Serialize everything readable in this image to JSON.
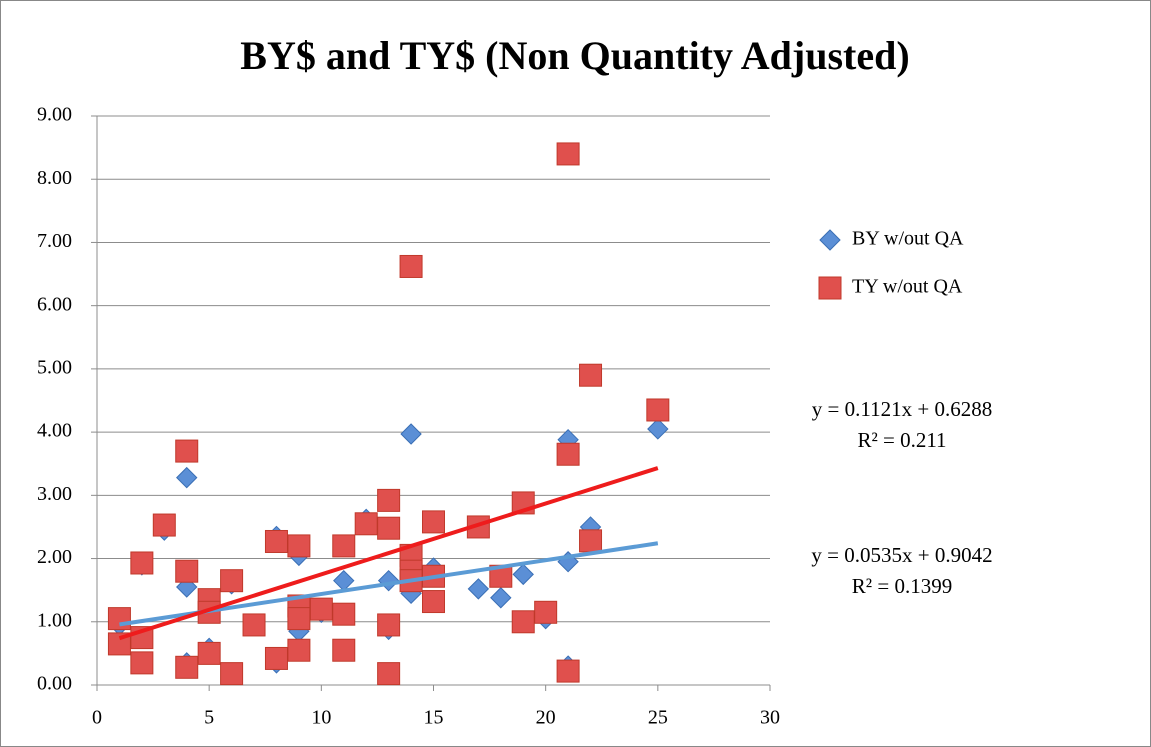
{
  "chart_data": {
    "type": "scatter",
    "title": "BY$ and TY$ (Non Quantity Adjusted)",
    "xlim": [
      0,
      30
    ],
    "xticks": [
      0,
      5,
      10,
      15,
      20,
      25,
      30
    ],
    "ylim": [
      0,
      9
    ],
    "yticks": [
      {
        "value": 0,
        "label": "0.00"
      },
      {
        "value": 1,
        "label": "1.00"
      },
      {
        "value": 2,
        "label": "2.00"
      },
      {
        "value": 3,
        "label": "3.00"
      },
      {
        "value": 4,
        "label": "4.00"
      },
      {
        "value": 5,
        "label": "5.00"
      },
      {
        "value": 6,
        "label": "6.00"
      },
      {
        "value": 7,
        "label": "7.00"
      },
      {
        "value": 8,
        "label": "8.00"
      },
      {
        "value": 9,
        "label": "9.00"
      }
    ],
    "grid": true,
    "legend": "right",
    "series": [
      {
        "name": "BY w/out QA",
        "color": "#5b8fd6",
        "marker": "diamond",
        "x": [
          1,
          2,
          3,
          4,
          4,
          4,
          5,
          6,
          8,
          8,
          9,
          9,
          10,
          11,
          12,
          13,
          13,
          14,
          14,
          15,
          17,
          18,
          19,
          20,
          21,
          21,
          21,
          22,
          25
        ],
        "values": [
          0.95,
          1.9,
          2.45,
          3.28,
          1.55,
          0.35,
          0.58,
          1.6,
          2.35,
          0.35,
          2.05,
          0.85,
          1.15,
          1.65,
          2.62,
          1.65,
          0.88,
          3.97,
          1.45,
          1.85,
          1.52,
          1.38,
          1.75,
          1.05,
          3.88,
          1.95,
          0.3,
          2.5,
          4.05
        ],
        "trendline": {
          "color": "#5b9bd5",
          "slope": 0.0535,
          "intercept": 0.9042,
          "equation": "y = 0.0535x + 0.9042",
          "r_squared": "R² = 0.1399"
        }
      },
      {
        "name": "TY w/out QA",
        "color": "#e0504d",
        "marker": "square",
        "x": [
          1,
          1,
          2,
          2,
          2,
          3,
          4,
          4,
          4,
          5,
          5,
          5,
          6,
          6,
          7,
          8,
          8,
          9,
          9,
          9,
          9,
          10,
          11,
          11,
          11,
          12,
          13,
          13,
          13,
          13,
          14,
          14,
          14,
          14,
          15,
          15,
          15,
          17,
          18,
          19,
          19,
          20,
          21,
          21,
          21,
          22,
          22,
          25
        ],
        "values": [
          1.05,
          0.65,
          1.93,
          0.75,
          0.35,
          2.53,
          3.7,
          1.8,
          0.28,
          1.35,
          1.15,
          0.5,
          1.65,
          0.18,
          0.95,
          2.27,
          0.42,
          2.2,
          1.25,
          1.05,
          0.55,
          1.2,
          2.2,
          1.12,
          0.55,
          2.55,
          2.92,
          2.48,
          0.95,
          0.18,
          6.62,
          2.05,
          1.8,
          1.65,
          2.58,
          1.72,
          1.32,
          2.5,
          1.72,
          2.88,
          1.0,
          1.15,
          8.4,
          3.65,
          0.22,
          4.9,
          2.28,
          4.35
        ],
        "trendline": {
          "color": "#ee1c1c",
          "slope": 0.1121,
          "intercept": 0.6288,
          "equation": "y = 0.1121x + 0.6288",
          "r_squared": "R² = 0.211"
        }
      }
    ]
  }
}
